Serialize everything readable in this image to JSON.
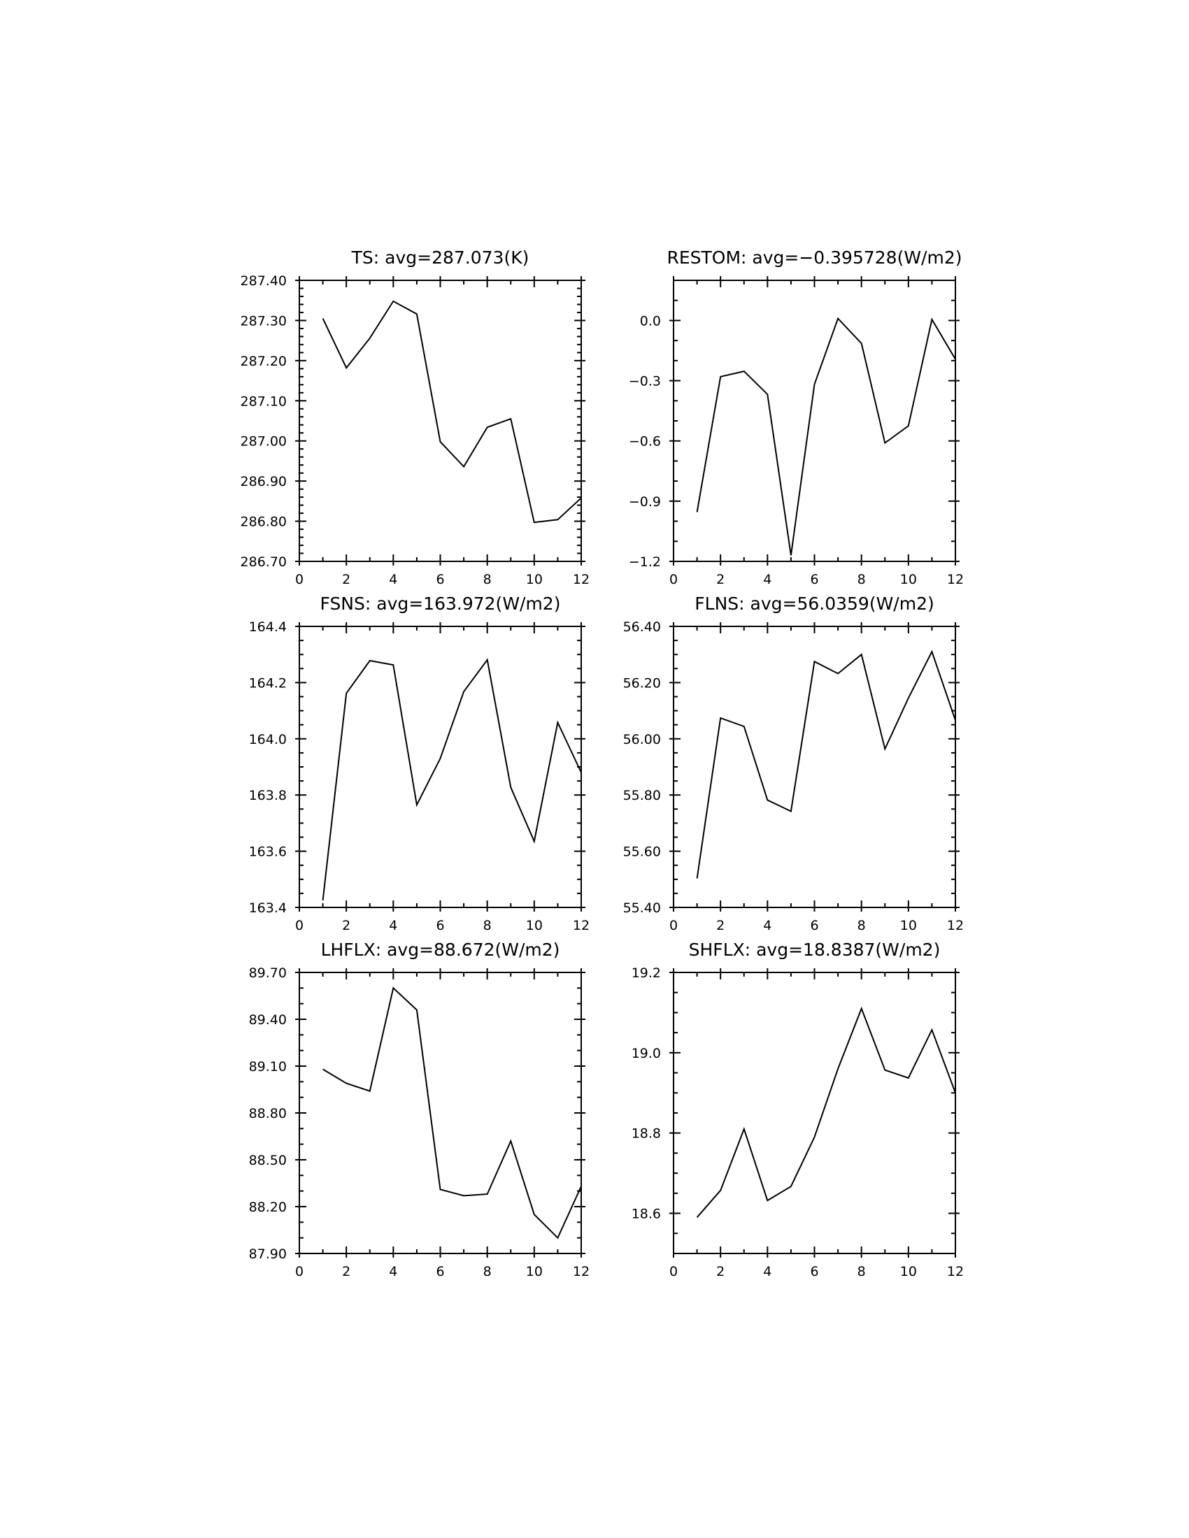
{
  "chart_data": [
    {
      "type": "line",
      "title": "TS:  avg=287.073(K)",
      "x": [
        1,
        2,
        3,
        4,
        5,
        6,
        7,
        8,
        9,
        10,
        11,
        12
      ],
      "series": [
        {
          "values": [
            287.305,
            287.182,
            287.256,
            287.348,
            287.316,
            286.998,
            286.936,
            287.034,
            287.055,
            286.797,
            286.804,
            286.858
          ]
        }
      ],
      "xlim": [
        0,
        12
      ],
      "ylim": [
        286.7,
        287.4
      ],
      "xticks": [
        0,
        2,
        4,
        6,
        8,
        10,
        12
      ],
      "xticklabels": [
        "0",
        "2",
        "4",
        "6",
        "8",
        "10",
        "12"
      ],
      "yticks": [
        286.7,
        286.8,
        286.9,
        287.0,
        287.1,
        287.2,
        287.3,
        287.4
      ],
      "yticklabels": [
        "286.70",
        "286.80",
        "286.90",
        "287.00",
        "287.10",
        "287.20",
        "287.30",
        "287.40"
      ],
      "yminor_step": 0.02,
      "xlabel": "",
      "ylabel": ""
    },
    {
      "type": "line",
      "title": "RESTOM:  avg=−0.395728(W/m2)",
      "x": [
        1,
        2,
        3,
        4,
        5,
        6,
        7,
        8,
        9,
        10,
        11,
        12
      ],
      "series": [
        {
          "values": [
            -0.955,
            -0.28,
            -0.253,
            -0.368,
            -1.17,
            -0.318,
            0.01,
            -0.114,
            -0.61,
            -0.525,
            0.005,
            -0.193
          ]
        }
      ],
      "xlim": [
        0,
        12
      ],
      "ylim": [
        -1.2,
        0.2
      ],
      "xticks": [
        0,
        2,
        4,
        6,
        8,
        10,
        12
      ],
      "xticklabels": [
        "0",
        "2",
        "4",
        "6",
        "8",
        "10",
        "12"
      ],
      "yticks": [
        -1.2,
        -0.9,
        -0.6,
        -0.3,
        0.0
      ],
      "yticklabels": [
        "−1.2",
        "−0.9",
        "−0.6",
        "−0.3",
        "0.0"
      ],
      "yminor_step": 0.1,
      "xlabel": "",
      "ylabel": ""
    },
    {
      "type": "line",
      "title": "FSNS:  avg=163.972(W/m2)",
      "x": [
        1,
        2,
        3,
        4,
        5,
        6,
        7,
        8,
        9,
        10,
        11,
        12
      ],
      "series": [
        {
          "values": [
            163.425,
            164.162,
            164.278,
            164.263,
            163.765,
            163.93,
            164.168,
            164.281,
            163.827,
            163.635,
            164.058,
            163.88
          ]
        }
      ],
      "xlim": [
        0,
        12
      ],
      "ylim": [
        163.4,
        164.4
      ],
      "xticks": [
        0,
        2,
        4,
        6,
        8,
        10,
        12
      ],
      "xticklabels": [
        "0",
        "2",
        "4",
        "6",
        "8",
        "10",
        "12"
      ],
      "yticks": [
        163.4,
        163.6,
        163.8,
        164.0,
        164.2,
        164.4
      ],
      "yticklabels": [
        "163.4",
        "163.6",
        "163.8",
        "164.0",
        "164.2",
        "164.4"
      ],
      "yminor_step": 0.05,
      "xlabel": "",
      "ylabel": ""
    },
    {
      "type": "line",
      "title": "FLNS:  avg=56.0359(W/m2)",
      "x": [
        1,
        2,
        3,
        4,
        5,
        6,
        7,
        8,
        9,
        10,
        11,
        12
      ],
      "series": [
        {
          "values": [
            55.503,
            56.074,
            56.044,
            55.782,
            55.742,
            56.275,
            56.232,
            56.3,
            55.964,
            56.145,
            56.31,
            56.066
          ]
        }
      ],
      "xlim": [
        0,
        12
      ],
      "ylim": [
        55.4,
        56.4
      ],
      "xticks": [
        0,
        2,
        4,
        6,
        8,
        10,
        12
      ],
      "xticklabels": [
        "0",
        "2",
        "4",
        "6",
        "8",
        "10",
        "12"
      ],
      "yticks": [
        55.4,
        55.6,
        55.8,
        56.0,
        56.2,
        56.4
      ],
      "yticklabels": [
        "55.40",
        "55.60",
        "55.80",
        "56.00",
        "56.20",
        "56.40"
      ],
      "yminor_step": 0.05,
      "xlabel": "",
      "ylabel": ""
    },
    {
      "type": "line",
      "title": "LHFLX:  avg=88.672(W/m2)",
      "x": [
        1,
        2,
        3,
        4,
        5,
        6,
        7,
        8,
        9,
        10,
        11,
        12
      ],
      "series": [
        {
          "values": [
            89.08,
            88.99,
            88.94,
            89.6,
            89.46,
            88.31,
            88.27,
            88.28,
            88.62,
            88.15,
            88.0,
            88.33
          ]
        }
      ],
      "xlim": [
        0,
        12
      ],
      "ylim": [
        87.9,
        89.7
      ],
      "xticks": [
        0,
        2,
        4,
        6,
        8,
        10,
        12
      ],
      "xticklabels": [
        "0",
        "2",
        "4",
        "6",
        "8",
        "10",
        "12"
      ],
      "yticks": [
        87.9,
        88.2,
        88.5,
        88.8,
        89.1,
        89.4,
        89.7
      ],
      "yticklabels": [
        "87.90",
        "88.20",
        "88.50",
        "88.80",
        "89.10",
        "89.40",
        "89.70"
      ],
      "yminor_step": 0.1,
      "xlabel": "",
      "ylabel": ""
    },
    {
      "type": "line",
      "title": "SHFLX:  avg=18.8387(W/m2)",
      "x": [
        1,
        2,
        3,
        4,
        5,
        6,
        7,
        8,
        9,
        10,
        11,
        12
      ],
      "series": [
        {
          "values": [
            18.59,
            18.657,
            18.81,
            18.632,
            18.667,
            18.79,
            18.96,
            19.11,
            18.957,
            18.937,
            19.057,
            18.9
          ]
        }
      ],
      "xlim": [
        0,
        12
      ],
      "ylim": [
        18.5,
        19.2
      ],
      "xticks": [
        0,
        2,
        4,
        6,
        8,
        10,
        12
      ],
      "xticklabels": [
        "0",
        "2",
        "4",
        "6",
        "8",
        "10",
        "12"
      ],
      "yticks": [
        18.6,
        18.8,
        19.0,
        19.2
      ],
      "yticklabels": [
        "18.6",
        "18.8",
        "19.0",
        "19.2"
      ],
      "yminor_step": 0.05,
      "xlabel": "",
      "ylabel": ""
    }
  ]
}
